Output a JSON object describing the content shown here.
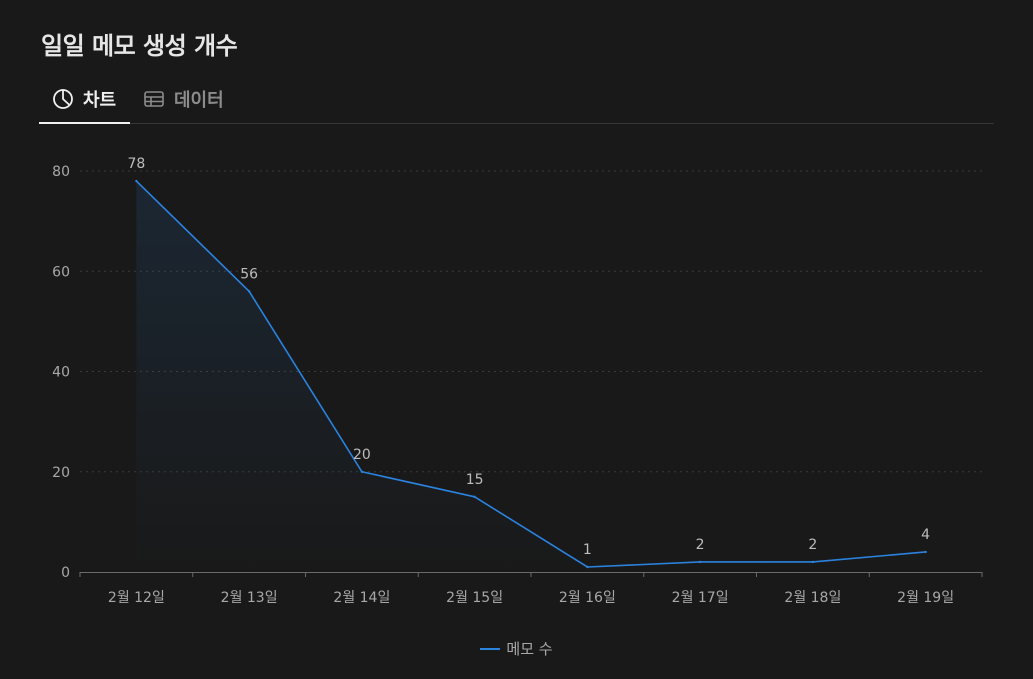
{
  "page": {
    "title": "일일 메모 생성 개수"
  },
  "tabs": [
    {
      "label": "차트",
      "icon": "pie-chart-icon",
      "active": true
    },
    {
      "label": "데이터",
      "icon": "table-icon",
      "active": false
    }
  ],
  "colors": {
    "background": "#191919",
    "line": "#2b83e0",
    "grid": "#3a3a3a",
    "axis_text": "#a8a8a8",
    "label_text": "#bdbdbd"
  },
  "chart_data": {
    "type": "line",
    "categories": [
      "2월 12일",
      "2월 13일",
      "2월 14일",
      "2월 15일",
      "2월 16일",
      "2월 17일",
      "2월 18일",
      "2월 19일"
    ],
    "series": [
      {
        "name": "메모 수",
        "values": [
          78,
          56,
          20,
          15,
          1,
          2,
          2,
          4
        ]
      }
    ],
    "ylim": [
      0,
      80
    ],
    "yticks": [
      0,
      20,
      40,
      60,
      80
    ],
    "grid": true,
    "legend": "bottom",
    "area_fill": true,
    "data_labels": true
  }
}
